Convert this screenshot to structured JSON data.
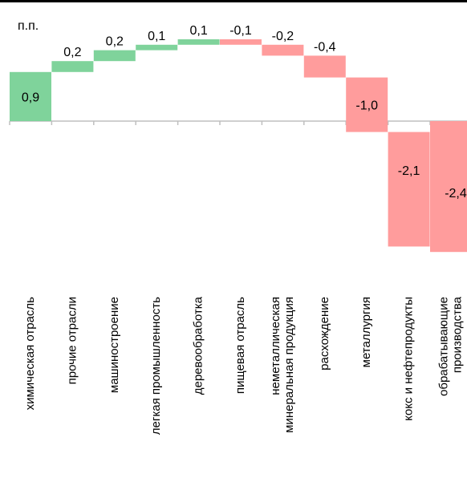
{
  "chart_data": {
    "type": "bar",
    "subtype": "waterfall",
    "unit_label": "п.п.",
    "categories": [
      "химическая отрасль",
      "прочие отрасли",
      "машиностроение",
      "легкая промышленность",
      "деревообработка",
      "пищевая отрасль",
      "неметаллическая минеральная продукция",
      "расхождение",
      "металлургия",
      "кокс и нефтепродукты",
      "обрабатывающие производства"
    ],
    "category_lines": [
      [
        "химическая отрасль"
      ],
      [
        "прочие отрасли"
      ],
      [
        "машиностроение"
      ],
      [
        "легкая промышленность"
      ],
      [
        "деревообработка"
      ],
      [
        "пищевая отрасль"
      ],
      [
        "неметаллическая",
        "минеральная продукция"
      ],
      [
        "расхождение"
      ],
      [
        "металлургия"
      ],
      [
        "кокс и нефтепродукты"
      ],
      [
        "обрабатывающие",
        "производства"
      ]
    ],
    "values": [
      0.9,
      0.2,
      0.2,
      0.1,
      0.1,
      -0.1,
      -0.2,
      -0.4,
      -1.0,
      -2.1,
      -2.4
    ],
    "total_index": 10,
    "data_labels": [
      "0,9",
      "0,2",
      "0,2",
      "0,1",
      "0,1",
      "-0,1",
      "-0,2",
      "-0,4",
      "-1,0",
      "-2,1",
      "-2,4"
    ],
    "colors": {
      "positive": "#7fd39b",
      "negative": "#ff9c9c",
      "total": "#ff9c9c",
      "axis": "#bfbfbf"
    },
    "ylim": [
      -2.4,
      1.3
    ],
    "grid": false,
    "legend": "none"
  }
}
